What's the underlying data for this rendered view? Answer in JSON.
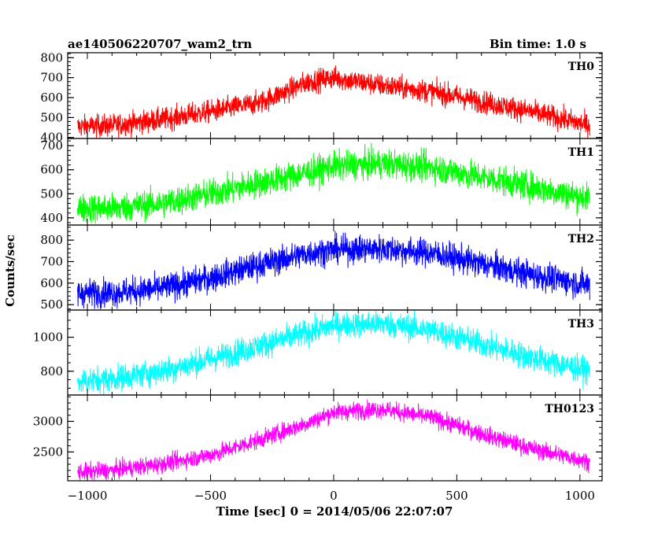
{
  "header": {
    "left_title": "ae140506220707_wam2_trn",
    "right_title": "Bin time: 1.0 s"
  },
  "chart_data": {
    "type": "line",
    "xlabel": "Time [sec] 0 = 2014/05/06 22:07:07",
    "ylabel": "Counts/sec",
    "xlim": [
      -1080,
      1090
    ],
    "x_ticks": [
      -1000,
      -500,
      0,
      500,
      1000
    ],
    "x_tick_labels": [
      "−1000",
      "−500",
      "0",
      "500",
      "1000"
    ],
    "grid": false,
    "panels": [
      {
        "label": "TH0",
        "color": "#ff0000",
        "ylim": [
          395,
          825
        ],
        "y_ticks": [
          400,
          500,
          600,
          700,
          800
        ],
        "y_tick_labels": [
          "400",
          "500",
          "600",
          "700",
          "800"
        ],
        "x": [
          -1040,
          -900,
          -700,
          -500,
          -300,
          -100,
          0,
          200,
          400,
          600,
          800,
          1040
        ],
        "y": [
          455,
          460,
          490,
          530,
          575,
          680,
          700,
          660,
          630,
          580,
          530,
          460
        ],
        "noise": 28
      },
      {
        "label": "TH1",
        "color": "#00ff00",
        "ylim": [
          370,
          730
        ],
        "y_ticks": [
          400,
          500,
          600,
          700
        ],
        "y_tick_labels": [
          "400",
          "500",
          "600",
          "700"
        ],
        "x": [
          -1040,
          -900,
          -700,
          -500,
          -300,
          -100,
          0,
          200,
          400,
          600,
          800,
          1040
        ],
        "y": [
          440,
          440,
          460,
          500,
          545,
          590,
          615,
          625,
          610,
          570,
          530,
          480
        ],
        "noise": 30
      },
      {
        "label": "TH2",
        "color": "#0000ff",
        "ylim": [
          475,
          870
        ],
        "y_ticks": [
          500,
          600,
          700,
          800
        ],
        "y_tick_labels": [
          "500",
          "600",
          "700",
          "800"
        ],
        "x": [
          -1040,
          -900,
          -700,
          -500,
          -300,
          -100,
          0,
          200,
          400,
          600,
          800,
          1040
        ],
        "y": [
          555,
          555,
          575,
          625,
          685,
          740,
          755,
          760,
          740,
          690,
          640,
          590
        ],
        "noise": 32
      },
      {
        "label": "TH3",
        "color": "#00ffff",
        "ylim": [
          660,
          1160
        ],
        "y_ticks": [
          800,
          1000
        ],
        "y_tick_labels": [
          "800",
          "1000"
        ],
        "x": [
          -1040,
          -900,
          -700,
          -500,
          -300,
          -100,
          0,
          200,
          400,
          600,
          800,
          1040
        ],
        "y": [
          740,
          755,
          800,
          870,
          950,
          1030,
          1070,
          1080,
          1040,
          960,
          880,
          800
        ],
        "noise": 38
      },
      {
        "label": "TH0123",
        "color": "#ff00ff",
        "ylim": [
          2030,
          3430
        ],
        "y_ticks": [
          2500,
          3000
        ],
        "y_tick_labels": [
          "2500",
          "3000"
        ],
        "x": [
          -1040,
          -900,
          -700,
          -500,
          -300,
          -100,
          0,
          200,
          400,
          600,
          800,
          1040
        ],
        "y": [
          2170,
          2200,
          2300,
          2450,
          2700,
          2980,
          3150,
          3200,
          3060,
          2800,
          2560,
          2340
        ],
        "noise": 70
      }
    ]
  }
}
